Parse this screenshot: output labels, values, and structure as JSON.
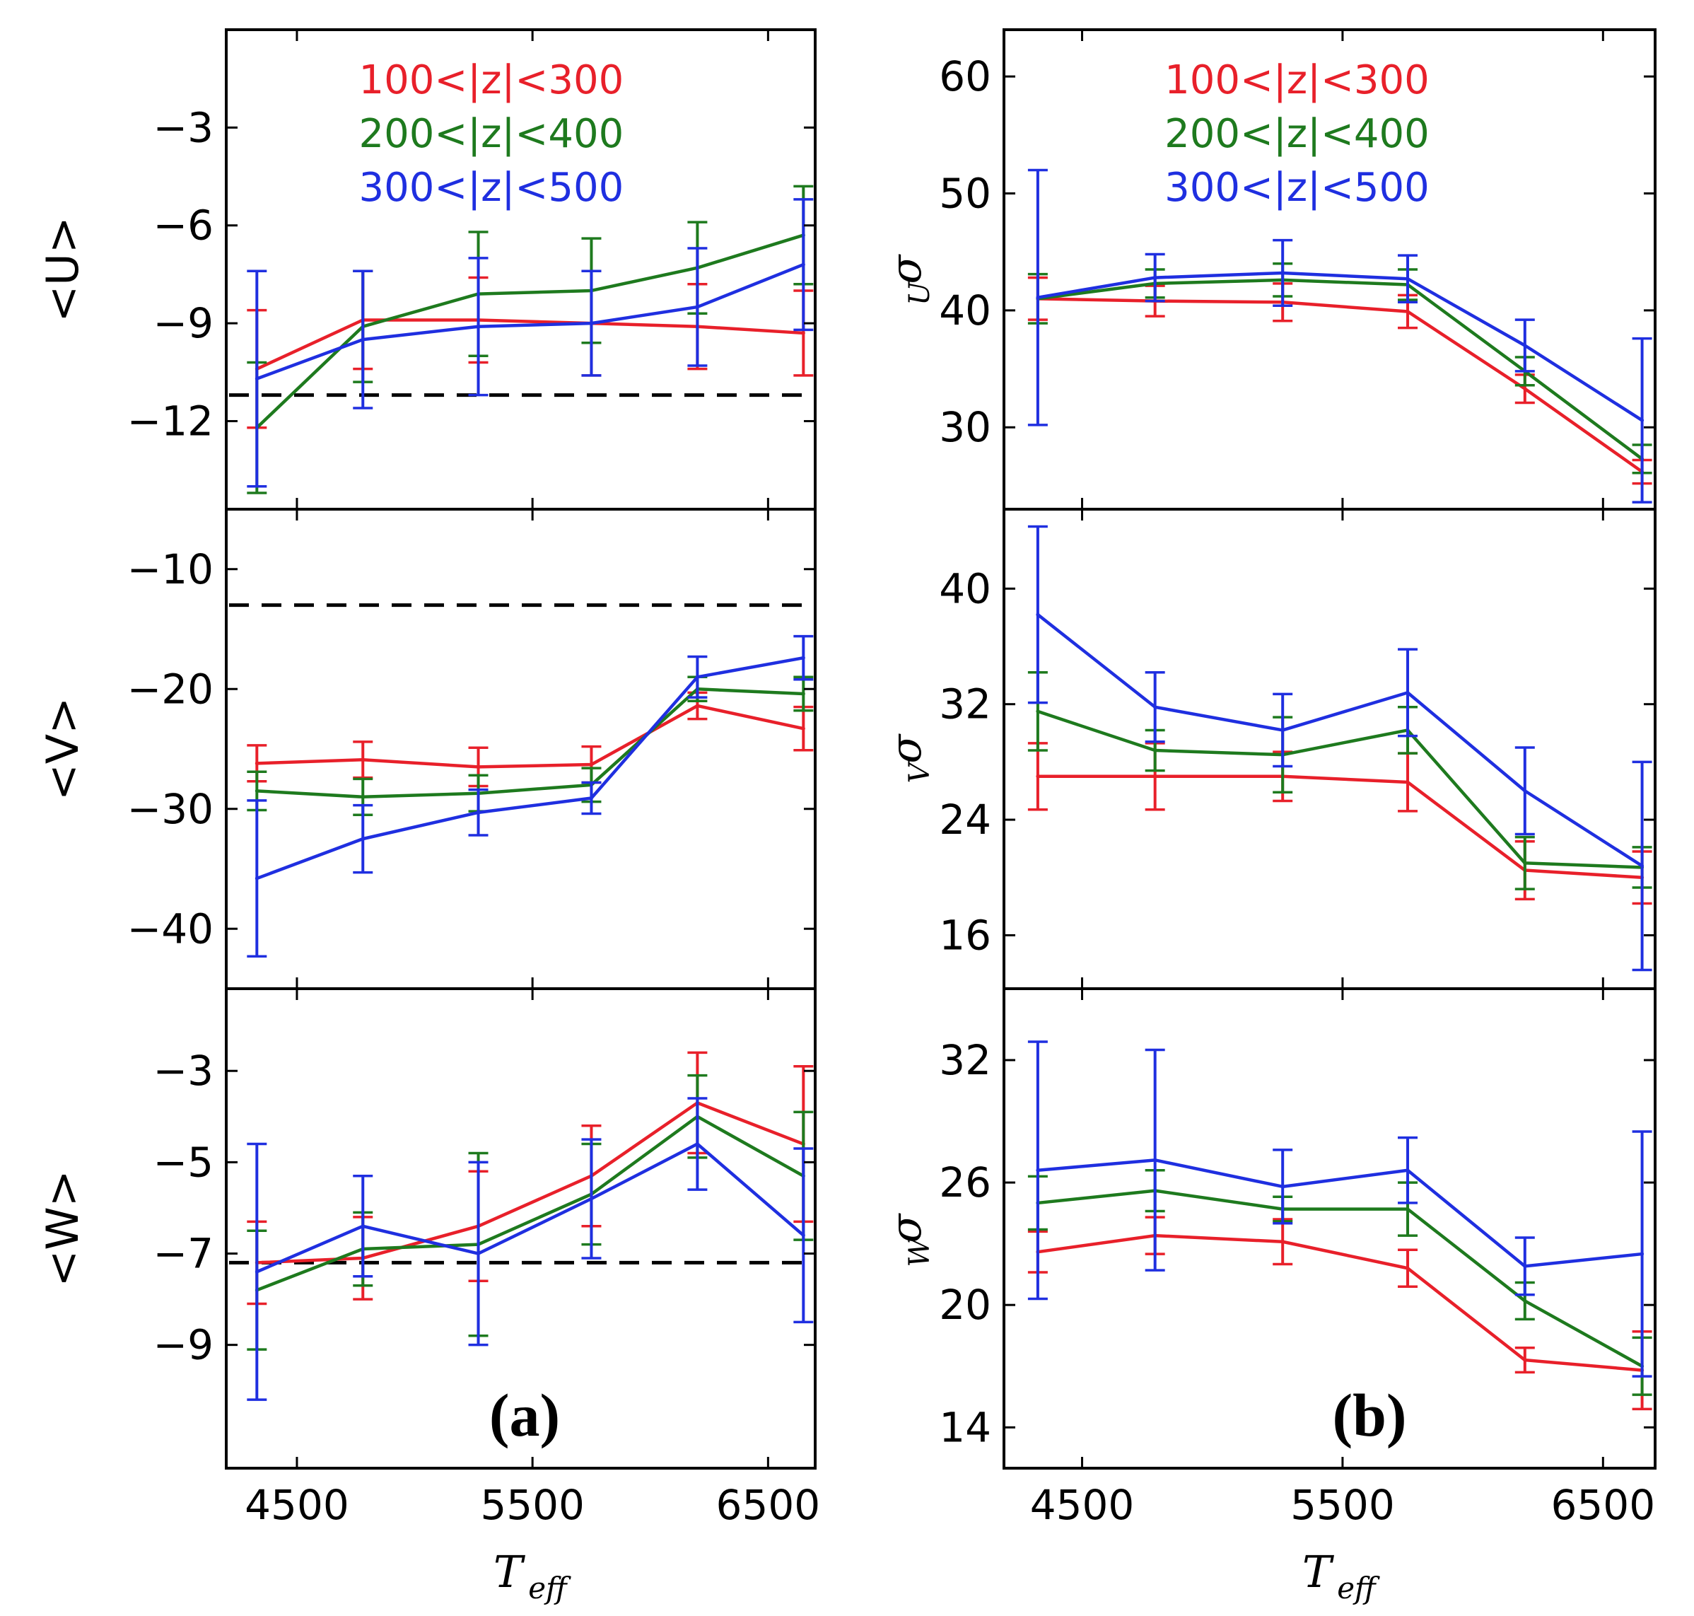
{
  "colors": {
    "series_100_300": "#e8202a",
    "series_200_400": "#1e7a1e",
    "series_300_500": "#1f2fe0",
    "reference_line": "#000000"
  },
  "figure": {
    "column_labels": {
      "left": "(a)",
      "right": "(b)"
    },
    "xlabel": {
      "main": "T",
      "sub": "eff"
    }
  },
  "chart_data": [
    {
      "type": "line",
      "panel": "a-top",
      "ylabel": "<U>",
      "xlim": [
        4200,
        6700
      ],
      "ylim": [
        -14.7,
        0
      ],
      "xticks": [
        4500,
        5500,
        6500
      ],
      "xticklabels": [
        "4500",
        "5500",
        "6500"
      ],
      "yticks": [
        -3,
        -6,
        -9,
        -12
      ],
      "yticklabels": [
        "−3",
        "−6",
        "−9",
        "−12"
      ],
      "reference_y": -11.2,
      "legend": {
        "placement": "top",
        "entries": [
          "100<|z|<300",
          "200<|z|<400",
          "300<|z|<500"
        ]
      },
      "x": [
        4330,
        4780,
        5270,
        5750,
        6200,
        6650
      ],
      "series": [
        {
          "name": "100<|z|<300",
          "values": [
            -10.4,
            -8.9,
            -8.9,
            -9.0,
            -9.1,
            -9.3
          ],
          "err": [
            1.8,
            1.5,
            1.3,
            1.6,
            1.3,
            1.3
          ]
        },
        {
          "name": "200<|z|<400",
          "values": [
            -12.2,
            -9.1,
            -8.1,
            -8.0,
            -7.3,
            -6.3
          ],
          "err": [
            2.0,
            1.7,
            1.9,
            1.6,
            1.4,
            1.5
          ]
        },
        {
          "name": "300<|z|<500",
          "values": [
            -10.7,
            -9.5,
            -9.1,
            -9.0,
            -8.5,
            -7.2
          ],
          "err": [
            3.3,
            2.1,
            2.1,
            1.6,
            1.8,
            2.0
          ]
        }
      ]
    },
    {
      "type": "line",
      "panel": "a-middle",
      "ylabel": "<V>",
      "xlim": [
        4200,
        6700
      ],
      "ylim": [
        -45,
        -5
      ],
      "xticks": [
        4500,
        5500,
        6500
      ],
      "xticklabels": [
        "4500",
        "5500",
        "6500"
      ],
      "yticks": [
        -10,
        -20,
        -30,
        -40
      ],
      "yticklabels": [
        "−10",
        "−20",
        "−30",
        "−40"
      ],
      "reference_y": -13,
      "x": [
        4330,
        4780,
        5270,
        5750,
        6200,
        6650
      ],
      "series": [
        {
          "name": "100<|z|<300",
          "values": [
            -26.2,
            -25.9,
            -26.5,
            -26.3,
            -21.4,
            -23.3
          ],
          "err": [
            1.5,
            1.5,
            1.6,
            1.5,
            1.1,
            1.8
          ]
        },
        {
          "name": "200<|z|<400",
          "values": [
            -28.5,
            -29.0,
            -28.7,
            -28.0,
            -20.0,
            -20.4
          ],
          "err": [
            1.6,
            1.5,
            1.5,
            1.4,
            1.0,
            1.4
          ]
        },
        {
          "name": "300<|z|<500",
          "values": [
            -35.8,
            -32.5,
            -30.3,
            -29.1,
            -19.0,
            -17.4
          ],
          "err": [
            6.5,
            2.8,
            1.9,
            1.3,
            1.7,
            1.8
          ]
        }
      ]
    },
    {
      "type": "line",
      "panel": "a-bottom",
      "ylabel": "<W>",
      "xlim": [
        4200,
        6700
      ],
      "ylim": [
        -11.7,
        -1.2
      ],
      "xticks": [
        4500,
        5500,
        6500
      ],
      "xticklabels": [
        "4500",
        "5500",
        "6500"
      ],
      "yticks": [
        -3,
        -5,
        -7,
        -9
      ],
      "yticklabels": [
        "−3",
        "−5",
        "−7",
        "−9"
      ],
      "reference_y": -7.2,
      "x": [
        4330,
        4780,
        5270,
        5750,
        6200,
        6650
      ],
      "series": [
        {
          "name": "100<|z|<300",
          "values": [
            -7.2,
            -7.1,
            -6.4,
            -5.3,
            -3.7,
            -4.6
          ],
          "err": [
            0.9,
            0.9,
            1.2,
            1.1,
            1.1,
            1.7
          ]
        },
        {
          "name": "200<|z|<400",
          "values": [
            -7.8,
            -6.9,
            -6.8,
            -5.7,
            -4.0,
            -5.3
          ],
          "err": [
            1.3,
            0.8,
            2.0,
            1.1,
            0.9,
            1.4
          ]
        },
        {
          "name": "300<|z|<500",
          "values": [
            -7.4,
            -6.4,
            -7.0,
            -5.8,
            -4.6,
            -6.6
          ],
          "err": [
            2.8,
            1.1,
            2.0,
            1.3,
            1.0,
            1.9
          ]
        }
      ]
    },
    {
      "type": "line",
      "panel": "b-top",
      "ylabel": {
        "main": "σ",
        "sub": "U"
      },
      "xlim": [
        4200,
        6700
      ],
      "ylim": [
        23,
        64
      ],
      "xticks": [
        4500,
        5500,
        6500
      ],
      "xticklabels": [
        "4500",
        "5500",
        "6500"
      ],
      "yticks": [
        30,
        40,
        50,
        60
      ],
      "yticklabels": [
        "30",
        "40",
        "50",
        "60"
      ],
      "legend": {
        "placement": "top",
        "entries": [
          "100<|z|<300",
          "200<|z|<400",
          "300<|z|<500"
        ]
      },
      "x": [
        4330,
        4780,
        5270,
        5750,
        6200,
        6650
      ],
      "series": [
        {
          "name": "100<|z|<300",
          "values": [
            41.0,
            40.8,
            40.7,
            39.9,
            33.3,
            26.2
          ],
          "err": [
            1.8,
            1.3,
            1.6,
            1.4,
            1.2,
            1.0
          ]
        },
        {
          "name": "200<|z|<400",
          "values": [
            41.0,
            42.3,
            42.6,
            42.2,
            34.8,
            27.3
          ],
          "err": [
            2.1,
            1.2,
            1.4,
            1.3,
            1.2,
            1.2
          ]
        },
        {
          "name": "300<|z|<500",
          "values": [
            41.1,
            42.8,
            43.2,
            42.7,
            37.0,
            30.6
          ],
          "err": [
            10.9,
            2.0,
            2.8,
            2.0,
            2.2,
            7.0
          ]
        }
      ]
    },
    {
      "type": "line",
      "panel": "b-middle",
      "ylabel": {
        "main": "σ",
        "sub": "V"
      },
      "xlim": [
        4200,
        6700
      ],
      "ylim": [
        12.3,
        45.5
      ],
      "xticks": [
        4500,
        5500,
        6500
      ],
      "xticklabels": [
        "4500",
        "5500",
        "6500"
      ],
      "yticks": [
        16,
        24,
        32,
        40
      ],
      "yticklabels": [
        "16",
        "24",
        "32",
        "40"
      ],
      "x": [
        4330,
        4780,
        5270,
        5750,
        6200,
        6650
      ],
      "series": [
        {
          "name": "100<|z|<300",
          "values": [
            27.0,
            27.0,
            27.0,
            26.6,
            20.5,
            20.0
          ],
          "err": [
            2.3,
            2.3,
            1.7,
            2.0,
            2.0,
            1.8
          ]
        },
        {
          "name": "200<|z|<400",
          "values": [
            31.5,
            28.8,
            28.5,
            30.2,
            21.0,
            20.7
          ],
          "err": [
            2.7,
            1.4,
            2.6,
            1.6,
            1.8,
            1.4
          ]
        },
        {
          "name": "300<|z|<500",
          "values": [
            38.2,
            31.8,
            30.2,
            32.8,
            26.0,
            20.8
          ],
          "err": [
            6.1,
            2.4,
            2.5,
            3.0,
            3.0,
            7.2
          ]
        }
      ]
    },
    {
      "type": "line",
      "panel": "b-bottom",
      "ylabel": {
        "main": "σ",
        "sub": "W"
      },
      "xlim": [
        4200,
        6700
      ],
      "ylim": [
        12,
        35.5
      ],
      "xticks": [
        4500,
        5500,
        6500
      ],
      "xticklabels": [
        "4500",
        "5500",
        "6500"
      ],
      "yticks": [
        14,
        20,
        26,
        32
      ],
      "yticklabels": [
        "14",
        "20",
        "26",
        "32"
      ],
      "x": [
        4330,
        4780,
        5270,
        5750,
        6200,
        6650
      ],
      "series": [
        {
          "name": "100<|z|<300",
          "values": [
            22.6,
            23.4,
            23.1,
            21.8,
            17.3,
            16.8
          ],
          "err": [
            1.0,
            0.9,
            1.1,
            0.9,
            0.6,
            1.9
          ]
        },
        {
          "name": "200<|z|<400",
          "values": [
            25.0,
            25.6,
            24.7,
            24.7,
            20.2,
            17.0
          ],
          "err": [
            1.3,
            1.0,
            0.6,
            1.3,
            0.9,
            1.4
          ]
        },
        {
          "name": "300<|z|<500",
          "values": [
            26.6,
            27.1,
            25.8,
            26.6,
            21.9,
            22.5
          ],
          "err": [
            6.3,
            5.4,
            1.8,
            1.6,
            1.4,
            6.0
          ]
        }
      ]
    }
  ]
}
